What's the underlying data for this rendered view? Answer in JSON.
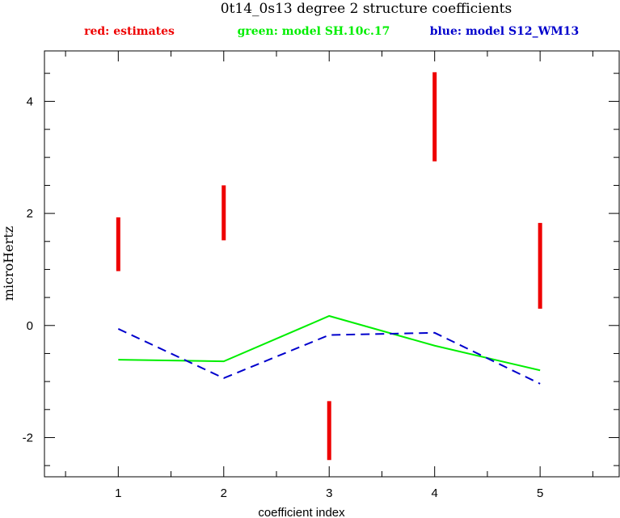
{
  "chart_data": {
    "type": "line",
    "title": "0t14_0s13 degree 2 structure coefficients",
    "xlabel": "coefficient index",
    "ylabel": "microHertz",
    "xlim": [
      0.3,
      5.75
    ],
    "ylim": [
      -2.7,
      4.9
    ],
    "xticks": [
      1,
      2,
      3,
      4,
      5
    ],
    "yticks": [
      -2,
      0,
      2,
      4
    ],
    "grid": false,
    "legend": [
      {
        "text": "red: estimates",
        "color": "#ee0000"
      },
      {
        "text": "green: model SH.10c.17",
        "color": "#00ee00"
      },
      {
        "text": "blue: model S12_WM13",
        "color": "#0000cc"
      }
    ],
    "estimates": {
      "name": "estimates",
      "color": "#ee0000",
      "x": [
        1,
        2,
        3,
        4,
        5
      ],
      "low": [
        0.97,
        1.52,
        -2.4,
        2.93,
        0.3
      ],
      "high": [
        1.93,
        2.5,
        -1.35,
        4.52,
        1.83
      ]
    },
    "series": [
      {
        "name": "model SH.10c.17",
        "color": "#00ee00",
        "dash": false,
        "x": [
          1,
          2,
          3,
          4,
          5
        ],
        "y": [
          -0.61,
          -0.64,
          0.17,
          -0.36,
          -0.8
        ]
      },
      {
        "name": "model S12_WM13",
        "color": "#0000cc",
        "dash": true,
        "x": [
          1,
          2,
          3,
          4,
          5
        ],
        "y": [
          -0.06,
          -0.94,
          -0.17,
          -0.13,
          -1.04
        ]
      }
    ]
  }
}
